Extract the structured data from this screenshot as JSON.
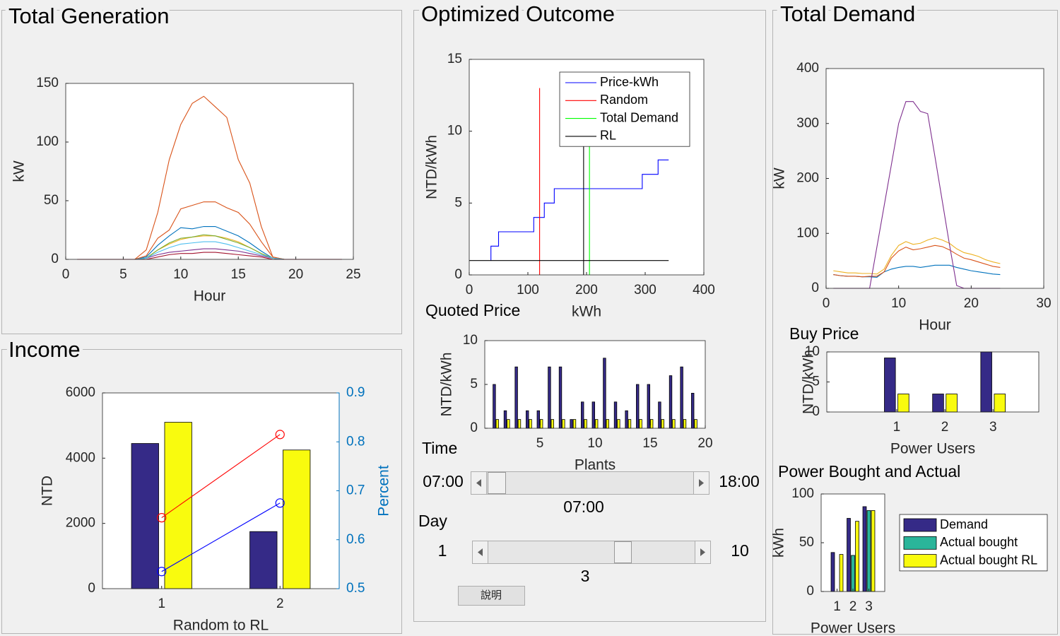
{
  "panels": [
    {
      "title": "Total Generation"
    },
    {
      "title": "Income"
    },
    {
      "title": "Optimized Outcome"
    },
    {
      "title": "Total Demand"
    }
  ],
  "labels": {
    "quoted_price": "Quoted Price",
    "time": "Time",
    "day": "Day"
  },
  "time_slider": {
    "min": "07:00",
    "max": "18:00",
    "value": "07:00"
  },
  "day_slider": {
    "min": 1,
    "max": 10,
    "value": 3
  },
  "button": "說明",
  "chart_data": [
    {
      "type": "line",
      "xlabel": "Hour",
      "ylabel": "kW",
      "x": [
        1,
        2,
        3,
        4,
        5,
        6,
        7,
        8,
        9,
        10,
        11,
        12,
        13,
        14,
        15,
        16,
        17,
        18,
        19,
        20,
        21,
        22,
        23,
        24
      ],
      "xlim": [
        0,
        25
      ],
      "xticks": [
        0,
        5,
        10,
        15,
        20,
        25
      ],
      "ylim": [
        0,
        150
      ],
      "yticks": [
        0,
        50,
        100,
        150
      ],
      "series": [
        {
          "color": "#0072BD",
          "values": [
            0,
            0,
            0,
            0,
            0,
            0,
            2,
            12,
            20,
            27,
            26,
            28,
            28,
            24,
            20,
            14,
            7,
            1,
            0,
            0,
            0,
            0,
            0,
            0
          ]
        },
        {
          "color": "#D95319",
          "values": [
            0,
            0,
            0,
            0,
            0,
            0,
            8,
            40,
            85,
            115,
            133,
            139,
            130,
            121,
            85,
            65,
            28,
            2,
            0,
            0,
            0,
            0,
            0,
            0
          ]
        },
        {
          "color": "#D95319",
          "values": [
            0,
            0,
            0,
            0,
            0,
            0,
            3,
            18,
            25,
            43,
            46,
            49,
            49,
            44,
            40,
            30,
            15,
            2,
            0,
            0,
            0,
            0,
            0,
            0
          ]
        },
        {
          "color": "#EDB120",
          "values": [
            0,
            0,
            0,
            0,
            0,
            0,
            1,
            8,
            13,
            17,
            19,
            20,
            20,
            18,
            15,
            10,
            5,
            1,
            0,
            0,
            0,
            0,
            0,
            0
          ]
        },
        {
          "color": "#7E2F8E",
          "values": [
            0,
            0,
            0,
            0,
            0,
            0,
            1,
            4,
            6,
            7,
            8,
            9,
            9,
            8,
            7,
            5,
            3,
            1,
            0,
            0,
            0,
            0,
            0,
            0
          ]
        },
        {
          "color": "#77AC30",
          "values": [
            0,
            0,
            0,
            0,
            0,
            0,
            1,
            8,
            14,
            18,
            19,
            21,
            20,
            17,
            14,
            10,
            5,
            1,
            0,
            0,
            0,
            0,
            0,
            0
          ]
        },
        {
          "color": "#4DBEEE",
          "values": [
            0,
            0,
            0,
            0,
            0,
            0,
            1,
            6,
            10,
            13,
            14,
            15,
            15,
            13,
            10,
            7,
            4,
            1,
            0,
            0,
            0,
            0,
            0,
            0
          ]
        },
        {
          "color": "#A2142F",
          "values": [
            0,
            0,
            0,
            0,
            0,
            0,
            0,
            2,
            4,
            5,
            5,
            6,
            6,
            5,
            4,
            3,
            2,
            0,
            0,
            0,
            0,
            0,
            0,
            0
          ]
        }
      ]
    },
    {
      "type": "bar",
      "xlabel": "Random to RL",
      "ylabel": "NTD",
      "y2label": "Percent",
      "y2color": "#0072BD",
      "x": [
        1,
        2
      ],
      "xlim": [
        0.5,
        2.5
      ],
      "xticks": [
        1,
        2
      ],
      "ylim": [
        0,
        6000
      ],
      "yticks": [
        0,
        2000,
        4000,
        6000
      ],
      "y2lim": [
        0.5,
        0.9
      ],
      "y2ticks": [
        0.5,
        0.6,
        0.7,
        0.8,
        0.9
      ],
      "series": [
        {
          "color": "#352A87",
          "values": [
            4450,
            1750
          ]
        },
        {
          "color": "#F9FB0E",
          "values": [
            5100,
            4250
          ]
        },
        {
          "type": "line",
          "axis": "y2",
          "marker": "o",
          "color": "#FF0000",
          "values": [
            0.645,
            0.815
          ]
        },
        {
          "type": "line",
          "axis": "y2",
          "marker": "o",
          "color": "#0000FF",
          "values": [
            0.535,
            0.675
          ]
        }
      ]
    },
    {
      "type": "line",
      "xlabel": "kWh",
      "ylabel": "NTD/kWh",
      "legend": "northeast",
      "xlim": [
        0,
        400
      ],
      "xticks": [
        0,
        100,
        200,
        300,
        400
      ],
      "ylim": [
        0,
        15
      ],
      "yticks": [
        0,
        5,
        10,
        15
      ],
      "series": [
        {
          "name": "Price-kWh",
          "color": "#0000FF",
          "x": [
            37,
            37,
            50,
            50,
            110,
            110,
            128,
            128,
            145,
            145,
            295,
            295,
            322,
            322,
            340
          ],
          "values": [
            1,
            2,
            2,
            3,
            3,
            4,
            4,
            5,
            5,
            6,
            6,
            7,
            7,
            8,
            8
          ]
        },
        {
          "name": "Random",
          "color": "#FF0000",
          "x": [
            120,
            120
          ],
          "values": [
            0,
            13
          ]
        },
        {
          "name": "Total Demand",
          "color": "#00FF00",
          "x": [
            205,
            205
          ],
          "values": [
            0,
            13
          ]
        },
        {
          "name": "RL",
          "color": "#000000",
          "x": [
            0,
            340,
            null,
            195,
            195
          ],
          "values": [
            1,
            1,
            null,
            0,
            13
          ]
        }
      ]
    },
    {
      "type": "bar",
      "xlabel": "Plants",
      "ylabel": "NTD/kWh",
      "x": [
        1,
        2,
        3,
        4,
        5,
        6,
        7,
        8,
        9,
        10,
        11,
        12,
        13,
        14,
        15,
        16,
        17,
        18,
        19
      ],
      "xlim": [
        0,
        20
      ],
      "xticks": [
        5,
        10,
        15,
        20
      ],
      "ylim": [
        0,
        10
      ],
      "yticks": [
        0,
        5,
        10
      ],
      "series": [
        {
          "color": "#352A87",
          "values": [
            5,
            2,
            7,
            2,
            2,
            7,
            7,
            1,
            3,
            3,
            8,
            3,
            2,
            5,
            5,
            3,
            6,
            7,
            4
          ]
        },
        {
          "color": "#F9FB0E",
          "values": [
            1,
            1,
            1,
            1,
            1,
            1,
            1,
            1,
            1,
            1,
            1,
            1,
            1,
            1,
            1,
            1,
            1,
            1,
            1
          ]
        }
      ]
    },
    {
      "type": "line",
      "xlabel": "Hour",
      "ylabel": "kW",
      "x": [
        1,
        2,
        3,
        4,
        5,
        6,
        7,
        8,
        9,
        10,
        11,
        12,
        13,
        14,
        15,
        16,
        17,
        18,
        19,
        20,
        21,
        22,
        23,
        24
      ],
      "xlim": [
        0,
        30
      ],
      "xticks": [
        0,
        10,
        20,
        30
      ],
      "ylim": [
        0,
        400
      ],
      "yticks": [
        0,
        100,
        200,
        300,
        400
      ],
      "series": [
        {
          "color": "#0072BD",
          "values": [
            25,
            23,
            22,
            22,
            21,
            21,
            20,
            30,
            35,
            38,
            40,
            40,
            38,
            40,
            42,
            42,
            42,
            38,
            35,
            32,
            30,
            28,
            26,
            25
          ]
        },
        {
          "color": "#D95319",
          "values": [
            25,
            23,
            22,
            22,
            21,
            22,
            22,
            30,
            55,
            68,
            75,
            70,
            72,
            75,
            78,
            76,
            70,
            62,
            55,
            52,
            48,
            44,
            40,
            38
          ]
        },
        {
          "color": "#EDB120",
          "values": [
            32,
            30,
            28,
            28,
            27,
            27,
            26,
            35,
            60,
            78,
            85,
            80,
            82,
            88,
            92,
            88,
            82,
            72,
            65,
            62,
            58,
            52,
            48,
            45
          ]
        },
        {
          "color": "#7E2F8E",
          "values": [
            0,
            0,
            0,
            0,
            0,
            0,
            75,
            150,
            225,
            300,
            340,
            340,
            322,
            318,
            240,
            160,
            80,
            5,
            0,
            0,
            0,
            0,
            0,
            0
          ]
        }
      ]
    },
    {
      "type": "bar",
      "title": "Buy Price",
      "xlabel": "Power Users",
      "ylabel": "NTD/kWh",
      "x": [
        1,
        2,
        3
      ],
      "xlim": [
        -0.45,
        3.95
      ],
      "xticks": [
        1,
        2,
        3
      ],
      "ylim": [
        0,
        10
      ],
      "yticks": [
        0,
        5,
        10
      ],
      "series": [
        {
          "color": "#352A87",
          "values": [
            9,
            3,
            10
          ]
        },
        {
          "color": "#F9FB0E",
          "values": [
            3,
            3,
            3
          ]
        }
      ]
    },
    {
      "type": "bar",
      "title": "Power Bought and Actual",
      "xlabel": "Power Users",
      "ylabel": "kWh",
      "legend": "eastoutside",
      "x": [
        1,
        2,
        3
      ],
      "xlim": [
        0,
        4
      ],
      "xticks": [
        1,
        2,
        3
      ],
      "ylim": [
        0,
        100
      ],
      "yticks": [
        0,
        50,
        100
      ],
      "series": [
        {
          "name": "Demand",
          "color": "#352A87",
          "values": [
            40,
            75,
            87
          ]
        },
        {
          "name": "Actual bought",
          "color": "#2AB59A",
          "values": [
            0,
            37,
            83
          ]
        },
        {
          "name": "Actual bought RL",
          "color": "#F9FB0E",
          "values": [
            38,
            72,
            83
          ]
        }
      ]
    }
  ]
}
